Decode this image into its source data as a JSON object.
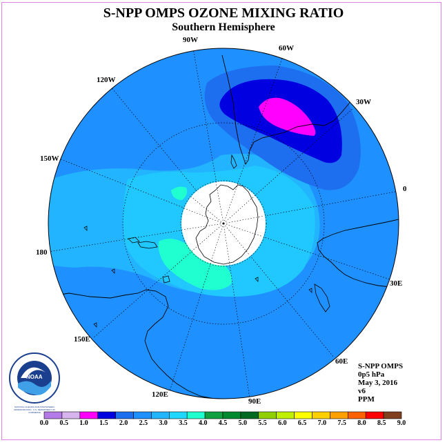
{
  "title": "S-NPP OMPS OZONE MIXING RATIO",
  "subtitle": "Southern Hemisphere",
  "longitude_labels": [
    "90W",
    "60W",
    "120W",
    "30W",
    "150W",
    "0",
    "180",
    "30E",
    "150E",
    "60E",
    "120E",
    "90E"
  ],
  "info": {
    "instrument": "S-NPP OMPS",
    "level": "0p5 hPa",
    "date": "May 3, 2016",
    "version": "v6",
    "units": "PPM"
  },
  "logo": {
    "text": "NOAA",
    "ring_text": "NATIONAL OCEANIC AND ATMOSPHERIC ADMINISTRATION · U.S. DEPARTMENT OF COMMERCE"
  },
  "colorbar": {
    "ticks": [
      "0.0",
      "0.5",
      "1.0",
      "1.5",
      "2.0",
      "2.5",
      "3.0",
      "3.5",
      "4.0",
      "4.5",
      "5.0",
      "5.5",
      "6.0",
      "6.5",
      "7.0",
      "7.5",
      "8.0",
      "8.5",
      "9.0"
    ],
    "colors": [
      "#b47ae8",
      "#d8b4ee",
      "#ff00ff",
      "#0000e0",
      "#1e6ef0",
      "#1e90ff",
      "#22b4ff",
      "#20d8ff",
      "#20ffd0",
      "#10a040",
      "#008a30",
      "#006a20",
      "#90d000",
      "#c0f000",
      "#ffff00",
      "#ffd000",
      "#ffa000",
      "#ff6000",
      "#ff0000",
      "#804020"
    ]
  },
  "colors": {
    "frame": "#e080e0",
    "land": "#000000",
    "grid": "#000000"
  }
}
